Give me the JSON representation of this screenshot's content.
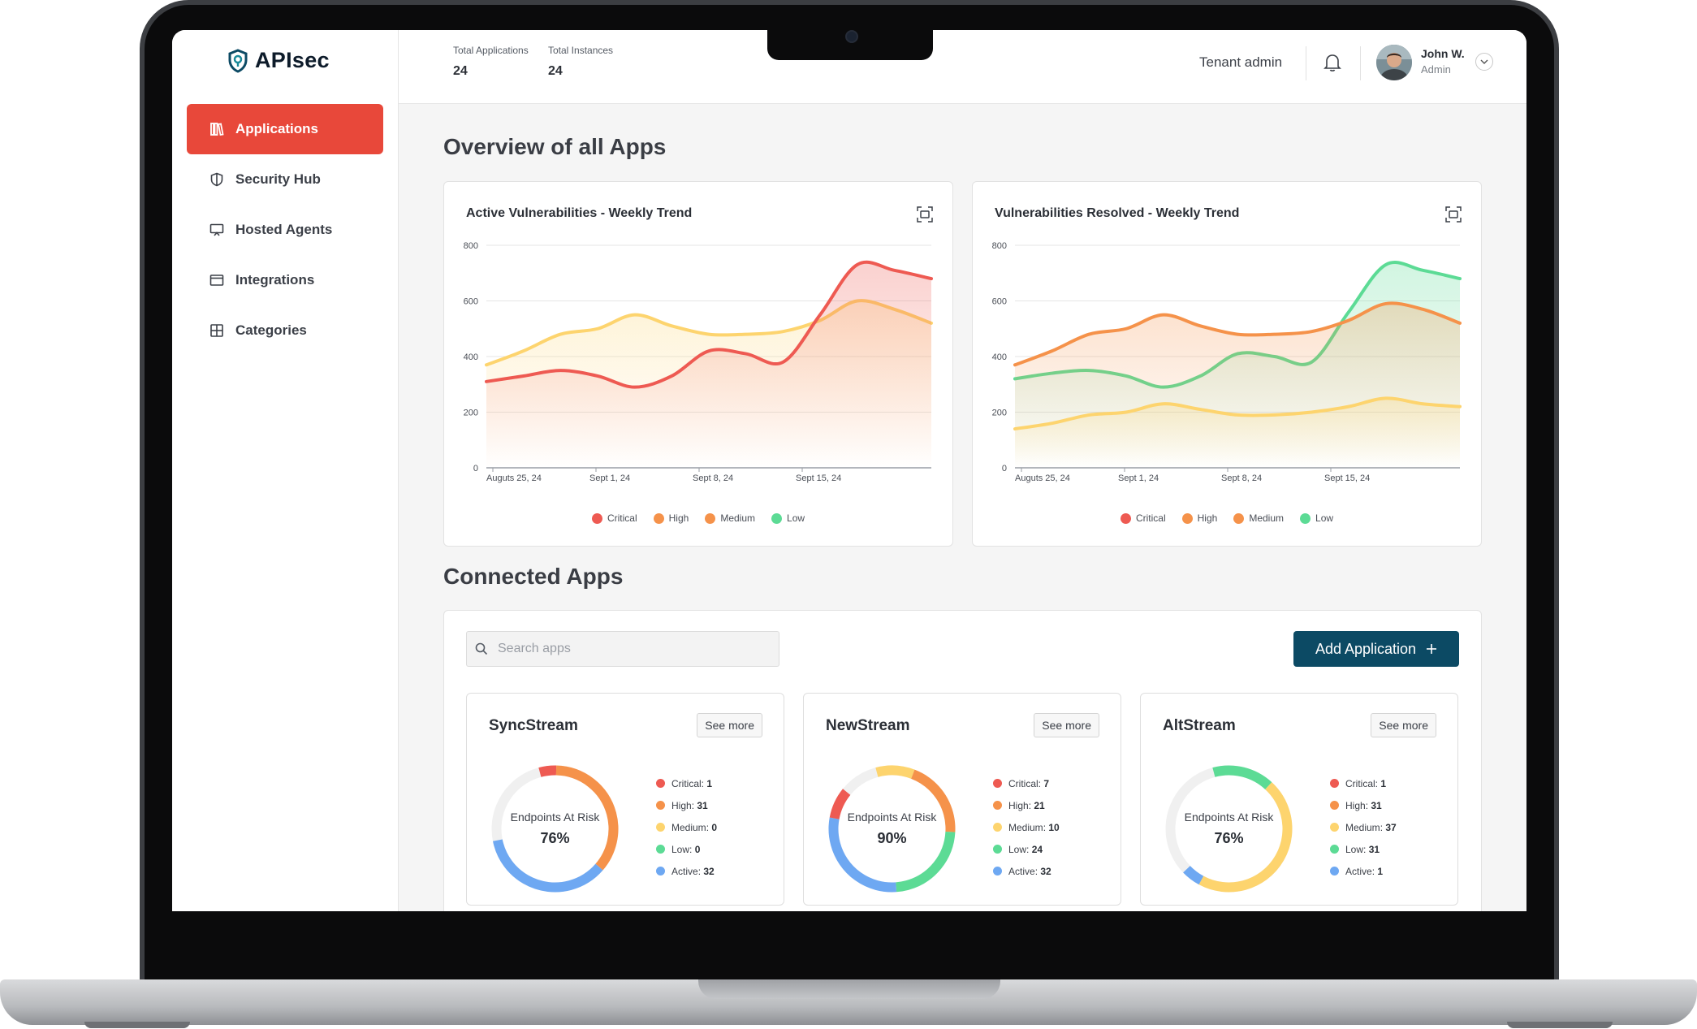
{
  "sidebar": {
    "brand": "APIsec",
    "items": [
      {
        "label": "Applications",
        "icon": "books-icon",
        "active": true
      },
      {
        "label": "Security Hub",
        "icon": "shield-icon",
        "active": false
      },
      {
        "label": "Hosted Agents",
        "icon": "monitor-agent-icon",
        "active": false
      },
      {
        "label": "Integrations",
        "icon": "window-icon",
        "active": false
      },
      {
        "label": "Categories",
        "icon": "grid-plus-icon",
        "active": false
      }
    ]
  },
  "header": {
    "stats": [
      {
        "label": "Total Applications",
        "value": "24"
      },
      {
        "label": "Total Instances",
        "value": "24"
      }
    ],
    "tenant": "Tenant admin",
    "user": {
      "name": "John W.",
      "role": "Admin"
    }
  },
  "overview": {
    "title": "Overview of all Apps",
    "legend": [
      "Critical",
      "High",
      "Medium",
      "Low"
    ]
  },
  "colors": {
    "accent_red": "#e8483a",
    "button_teal": "#0c4a64",
    "critical": "#ee5a52",
    "high": "#f5924a",
    "medium": "#fdd46e",
    "low": "#5cdb95",
    "active": "#6ea8f2"
  },
  "chart_data": [
    {
      "type": "area",
      "title": "Active Vulnerabilities - Weekly Trend",
      "xlabel": "",
      "ylabel": "",
      "ylim": [
        0,
        800
      ],
      "yticks": [
        "800",
        "600",
        "400",
        "200",
        "0"
      ],
      "xticks": [
        "Auguts 25, 24",
        "Sept 1, 24",
        "Sept 8, 24",
        "Sept 15, 24"
      ],
      "legend_position": "bottom",
      "series": [
        {
          "name": "Medium",
          "color": "#fdd46e",
          "values": [
            370,
            420,
            480,
            500,
            550,
            510,
            480,
            480,
            490,
            530,
            600,
            570,
            520
          ]
        },
        {
          "name": "Critical",
          "color": "#ee5a52",
          "values": [
            310,
            330,
            350,
            330,
            290,
            330,
            420,
            410,
            380,
            550,
            730,
            710,
            680
          ]
        }
      ]
    },
    {
      "type": "area",
      "title": "Vulnerabilities Resolved - Weekly Trend",
      "xlabel": "",
      "ylabel": "",
      "ylim": [
        0,
        800
      ],
      "yticks": [
        "800",
        "600",
        "400",
        "200",
        "0"
      ],
      "xticks": [
        "Auguts 25, 24",
        "Sept 1, 24",
        "Sept 8, 24",
        "Sept 15, 24"
      ],
      "legend_position": "bottom",
      "series": [
        {
          "name": "Low",
          "color": "#5cdb95",
          "values": [
            320,
            340,
            350,
            330,
            290,
            330,
            410,
            400,
            380,
            560,
            730,
            710,
            680
          ]
        },
        {
          "name": "High",
          "color": "#f5924a",
          "values": [
            370,
            420,
            480,
            500,
            550,
            510,
            480,
            480,
            490,
            530,
            590,
            570,
            520
          ]
        },
        {
          "name": "Medium",
          "color": "#fdd46e",
          "values": [
            140,
            160,
            190,
            200,
            230,
            210,
            190,
            190,
            200,
            220,
            250,
            230,
            220
          ]
        }
      ]
    }
  ],
  "connected": {
    "title": "Connected Apps",
    "search_placeholder": "Search apps",
    "add_button": "Add Application",
    "donut_caption": "Endpoints At Risk",
    "see_more": "See more",
    "apps": [
      {
        "name": "SyncStream",
        "percent": "76%",
        "segments": [
          {
            "key": "Critical",
            "value": 1,
            "display": "1"
          },
          {
            "key": "High",
            "value": 31,
            "display": "31"
          },
          {
            "key": "Medium",
            "value": 0,
            "display": "0"
          },
          {
            "key": "Low",
            "value": 0,
            "display": "0"
          },
          {
            "key": "Active",
            "value": 32,
            "display": "32"
          }
        ],
        "arcs": [
          {
            "color": "#ee5a52",
            "frac": 0.045
          },
          {
            "color": "#f5924a",
            "frac": 0.36
          },
          {
            "color": "#6ea8f2",
            "frac": 0.355
          }
        ]
      },
      {
        "name": "NewStream",
        "percent": "90%",
        "segments": [
          {
            "key": "Critical",
            "value": 7,
            "display": "7"
          },
          {
            "key": "High",
            "value": 21,
            "display": "21"
          },
          {
            "key": "Medium",
            "value": 10,
            "display": "10"
          },
          {
            "key": "Low",
            "value": 24,
            "display": "24"
          },
          {
            "key": "Active",
            "value": 32,
            "display": "32"
          }
        ],
        "arcs": [
          {
            "color": "#fdd46e",
            "frac": 0.1
          },
          {
            "color": "#f5924a",
            "frac": 0.2
          },
          {
            "color": "#5cdb95",
            "frac": 0.23
          },
          {
            "color": "#6ea8f2",
            "frac": 0.29
          },
          {
            "color": "#ee5a52",
            "frac": 0.08
          }
        ]
      },
      {
        "name": "AltStream",
        "percent": "76%",
        "segments": [
          {
            "key": "Critical",
            "value": 1,
            "display": "1"
          },
          {
            "key": "High",
            "value": 31,
            "display": "31"
          },
          {
            "key": "Medium",
            "value": 37,
            "display": "37"
          },
          {
            "key": "Low",
            "value": 31,
            "display": "31"
          },
          {
            "key": "Active",
            "value": 1,
            "display": "1"
          }
        ],
        "arcs": [
          {
            "color": "#5cdb95",
            "frac": 0.16
          },
          {
            "color": "#fdd46e",
            "frac": 0.46
          },
          {
            "color": "#6ea8f2",
            "frac": 0.05
          }
        ]
      }
    ]
  }
}
